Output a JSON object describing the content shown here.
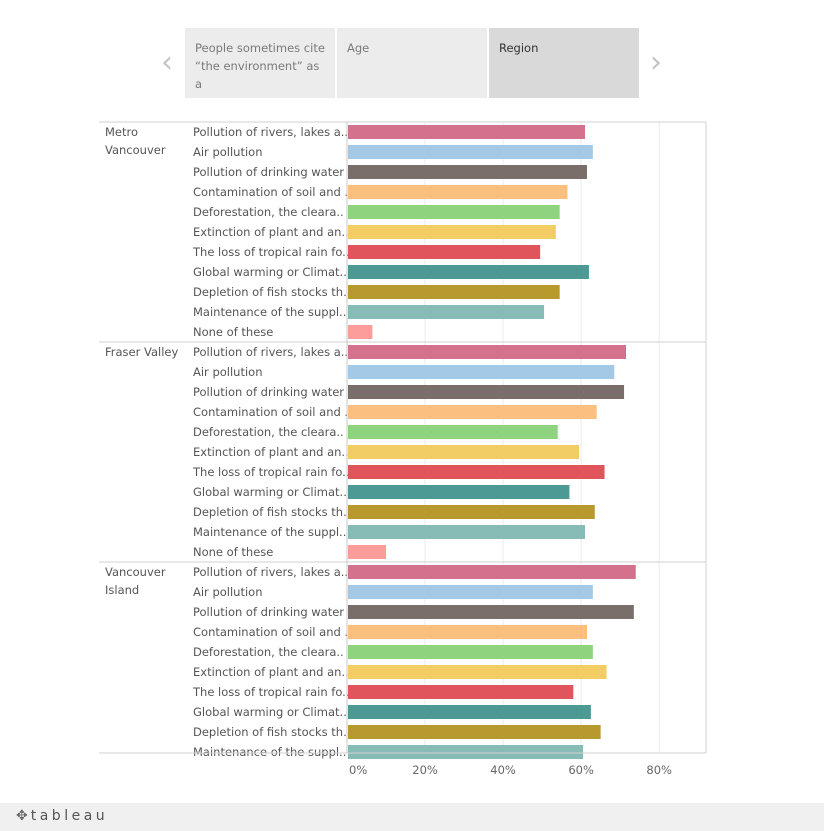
{
  "story": {
    "prev_icon": "chevron-left-icon",
    "next_icon": "chevron-right-icon",
    "points": [
      {
        "label": "People sometimes cite “the environment” as a",
        "active": false
      },
      {
        "label": "Age",
        "active": false
      },
      {
        "label": "Region",
        "active": true
      }
    ]
  },
  "chart_data": {
    "type": "bar",
    "orientation": "horizontal",
    "x_ticks": [
      "0%",
      "20%",
      "40%",
      "60%",
      "80%"
    ],
    "xlim": [
      0,
      0.92
    ],
    "grid": true,
    "colors": [
      "#d4728e",
      "#a3c9e6",
      "#7a6e6a",
      "#fbbf7f",
      "#8fd37e",
      "#f1cd64",
      "#e0555c",
      "#4d9a95",
      "#b8992d",
      "#86bbb6",
      "#fc9d9b"
    ],
    "groups": [
      {
        "name": "Metro\nVancouver",
        "categories": [
          "Pollution of rivers, lakes a..",
          "Air pollution",
          "Pollution of drinking water",
          "Contamination of soil and ..",
          "Deforestation, the cleara..",
          "Extinction of plant and an..",
          "The loss of tropical rain fo..",
          "Global warming or Climat..",
          "Depletion of fish stocks th..",
          "Maintenance of the suppl..",
          "None of these"
        ],
        "values": [
          0.61,
          0.63,
          0.615,
          0.565,
          0.545,
          0.535,
          0.495,
          0.62,
          0.545,
          0.505,
          0.065
        ]
      },
      {
        "name": "Fraser Valley",
        "categories": [
          "Pollution of rivers, lakes a..",
          "Air pollution",
          "Pollution of drinking water",
          "Contamination of soil and ..",
          "Deforestation, the cleara..",
          "Extinction of plant and an..",
          "The loss of tropical rain fo..",
          "Global warming or Climat..",
          "Depletion of fish stocks th..",
          "Maintenance of the suppl..",
          "None of these"
        ],
        "values": [
          0.715,
          0.685,
          0.71,
          0.64,
          0.54,
          0.595,
          0.66,
          0.57,
          0.635,
          0.61,
          0.1
        ]
      },
      {
        "name": "Vancouver\nIsland",
        "categories": [
          "Pollution of rivers, lakes a..",
          "Air pollution",
          "Pollution of drinking water",
          "Contamination of soil and ..",
          "Deforestation, the cleara..",
          "Extinction of plant and an..",
          "The loss of tropical rain fo..",
          "Global warming or Climat..",
          "Depletion of fish stocks th..",
          "Maintenance of the suppl.."
        ],
        "values": [
          0.74,
          0.63,
          0.735,
          0.615,
          0.63,
          0.665,
          0.58,
          0.625,
          0.65,
          0.605
        ]
      }
    ]
  },
  "footer": {
    "logo_icon": "tableau-cross-icon",
    "logo_text": "tableau"
  }
}
